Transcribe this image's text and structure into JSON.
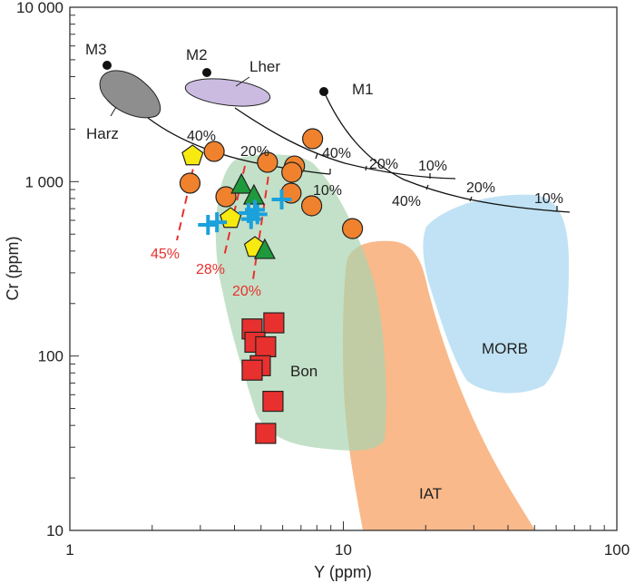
{
  "chart_data": {
    "type": "scatter",
    "title": "",
    "xlabel": "Y (ppm)",
    "ylabel": "Cr (ppm)",
    "xscale": "log",
    "yscale": "log",
    "xlim": [
      1,
      100
    ],
    "ylim": [
      10,
      10000
    ],
    "x_ticks": [
      {
        "v": 1,
        "label": "1"
      },
      {
        "v": 10,
        "label": "10"
      },
      {
        "v": 100,
        "label": "100"
      }
    ],
    "y_ticks": [
      {
        "v": 10,
        "label": "10"
      },
      {
        "v": 100,
        "label": "100"
      },
      {
        "v": 1000,
        "label": "1 000"
      },
      {
        "v": 10000,
        "label": "10 000"
      }
    ],
    "fields": {
      "harz": "Harz",
      "lher": "Lher",
      "bon": "Bon",
      "iat": "IAT",
      "morb": "MORB"
    },
    "sources": {
      "m1": "M1",
      "m2": "M2",
      "m3": "M3"
    },
    "melting_labels": {
      "m3_40": "40%",
      "m3_10": "10%",
      "m2_40": "40%",
      "m2_20": "20%",
      "m2_10": "10%",
      "m1_40": "40%",
      "m1_20": "20%",
      "m1_10": "10%"
    },
    "trend_labels": {
      "t45": "45%",
      "t28": "28%",
      "t20": "20%"
    },
    "series": [
      {
        "name": "circles",
        "marker": "circle",
        "color": "#f0822d",
        "points": [
          [
            3.37,
            1490
          ],
          [
            2.75,
            980
          ],
          [
            3.72,
            819
          ],
          [
            5.28,
            1291
          ],
          [
            6.63,
            1230
          ],
          [
            6.48,
            1132
          ],
          [
            7.72,
            1762
          ],
          [
            6.44,
            859
          ],
          [
            7.66,
            727
          ],
          [
            10.8,
            538
          ]
        ]
      },
      {
        "name": "pentagons",
        "marker": "pentagon",
        "color": "#f6ea10",
        "points": [
          [
            2.81,
            1403
          ],
          [
            3.87,
            614
          ],
          [
            4.75,
            419
          ]
        ]
      },
      {
        "name": "triangles",
        "marker": "triangle",
        "color": "#1e9a3c",
        "points": [
          [
            4.24,
            946
          ],
          [
            4.71,
            819
          ],
          [
            5.16,
            399
          ]
        ]
      },
      {
        "name": "crosses",
        "marker": "cross",
        "color": "#1ba1dc",
        "points": [
          [
            3.2,
            565
          ],
          [
            3.45,
            585
          ],
          [
            4.5,
            660
          ],
          [
            4.75,
            690
          ],
          [
            4.6,
            610
          ],
          [
            4.85,
            650
          ],
          [
            5.95,
            790
          ]
        ]
      },
      {
        "name": "squares",
        "marker": "square",
        "color": "#e8302e",
        "points": [
          [
            4.64,
            143
          ],
          [
            5.57,
            155
          ],
          [
            4.75,
            120
          ],
          [
            5.2,
            113
          ],
          [
            4.97,
            88
          ],
          [
            4.64,
            83
          ],
          [
            5.53,
            55
          ],
          [
            5.2,
            36
          ]
        ]
      }
    ]
  }
}
